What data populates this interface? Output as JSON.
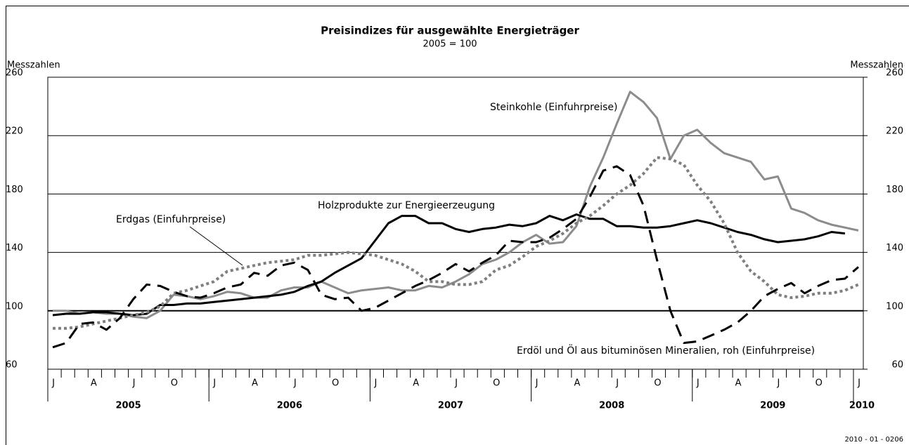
{
  "chart_data": {
    "type": "line",
    "title": "Preisindizes für ausgewählte Energieträger",
    "subtitle": "2005 = 100",
    "ylabel": "Messzahlen",
    "y2label": "Messzahlen",
    "footnote": "2010 - 01 - 0206",
    "categories": [
      "J",
      null,
      null,
      "A",
      null,
      null,
      "J",
      null,
      null,
      "O",
      null,
      null,
      "J",
      null,
      null,
      "A",
      null,
      null,
      "J",
      null,
      null,
      "O",
      null,
      null,
      "J",
      null,
      null,
      "A",
      null,
      null,
      "J",
      null,
      null,
      "O",
      null,
      null,
      "J",
      null,
      null,
      "A",
      null,
      null,
      "J",
      null,
      null,
      "O",
      null,
      null,
      "J",
      null,
      null,
      "A",
      null,
      null,
      "J",
      null,
      null,
      "O",
      null,
      null,
      "J"
    ],
    "years": [
      "2005",
      "2006",
      "2007",
      "2008",
      "2009",
      "2010"
    ],
    "ylim": [
      60,
      260
    ],
    "yticks": [
      60,
      100,
      140,
      180,
      220,
      260
    ],
    "y2lim": [
      60,
      260
    ],
    "y2ticks": [
      60,
      100,
      140,
      180,
      220,
      260
    ],
    "grid": true,
    "series": [
      {
        "name": "Steinkohle (Einfuhrpreise)",
        "color": "#8c8c8c",
        "dash": "solid",
        "values": [
          100,
          100,
          98,
          99,
          98,
          98,
          96,
          95,
          100,
          111,
          110,
          108,
          110,
          113,
          112,
          109,
          109,
          114,
          116,
          116,
          120,
          116,
          112,
          114,
          115,
          116,
          114,
          114,
          117,
          116,
          120,
          125,
          132,
          135,
          140,
          147,
          152,
          146,
          147,
          158,
          185,
          205,
          228,
          250,
          243,
          232,
          204,
          220,
          224,
          215,
          208,
          205,
          202,
          190,
          192,
          170,
          167,
          162,
          159,
          157,
          155
        ]
      },
      {
        "name": "Holzprodukte zur Energieerzeugung",
        "color": "#000000",
        "dash": "solid",
        "values": [
          97,
          98,
          98,
          99,
          99,
          98,
          97,
          98,
          104,
          104,
          105,
          105,
          106,
          107,
          108,
          109,
          110,
          111,
          113,
          117,
          120,
          126,
          131,
          136,
          148,
          160,
          165,
          165,
          160,
          160,
          156,
          154,
          156,
          157,
          159,
          158,
          160,
          165,
          162,
          166,
          163,
          163,
          158,
          158,
          157,
          157,
          158,
          160,
          162,
          160,
          157,
          154,
          152,
          149,
          147,
          148,
          149,
          151,
          154,
          153,
          null
        ]
      },
      {
        "name": "Erdgas (Einfuhrpreise)",
        "color": "#7f7f7f",
        "dash": "dotted",
        "values": [
          88,
          88,
          89,
          91,
          93,
          95,
          97,
          99,
          103,
          112,
          114,
          117,
          120,
          127,
          129,
          131,
          133,
          134,
          135,
          138,
          138,
          139,
          140,
          139,
          138,
          135,
          132,
          127,
          120,
          120,
          118,
          118,
          120,
          128,
          131,
          137,
          144,
          148,
          153,
          160,
          165,
          172,
          180,
          186,
          194,
          205,
          204,
          200,
          186,
          175,
          160,
          140,
          127,
          120,
          111,
          109,
          110,
          112,
          112,
          114,
          118
        ]
      },
      {
        "name": "Erdöl und Öl aus bituminösen Mineralien, roh (Einfuhrpreise)",
        "color": "#000000",
        "dash": "dashed",
        "values": [
          75,
          78,
          91,
          92,
          87,
          95,
          108,
          118,
          117,
          113,
          110,
          109,
          112,
          116,
          118,
          126,
          124,
          131,
          133,
          128,
          111,
          108,
          109,
          100,
          102,
          107,
          112,
          117,
          121,
          126,
          132,
          127,
          133,
          138,
          148,
          147,
          147,
          150,
          156,
          163,
          178,
          196,
          199,
          193,
          172,
          135,
          100,
          78,
          79,
          83,
          87,
          92,
          100,
          110,
          115,
          119,
          112,
          117,
          121,
          122,
          130
        ]
      }
    ]
  }
}
